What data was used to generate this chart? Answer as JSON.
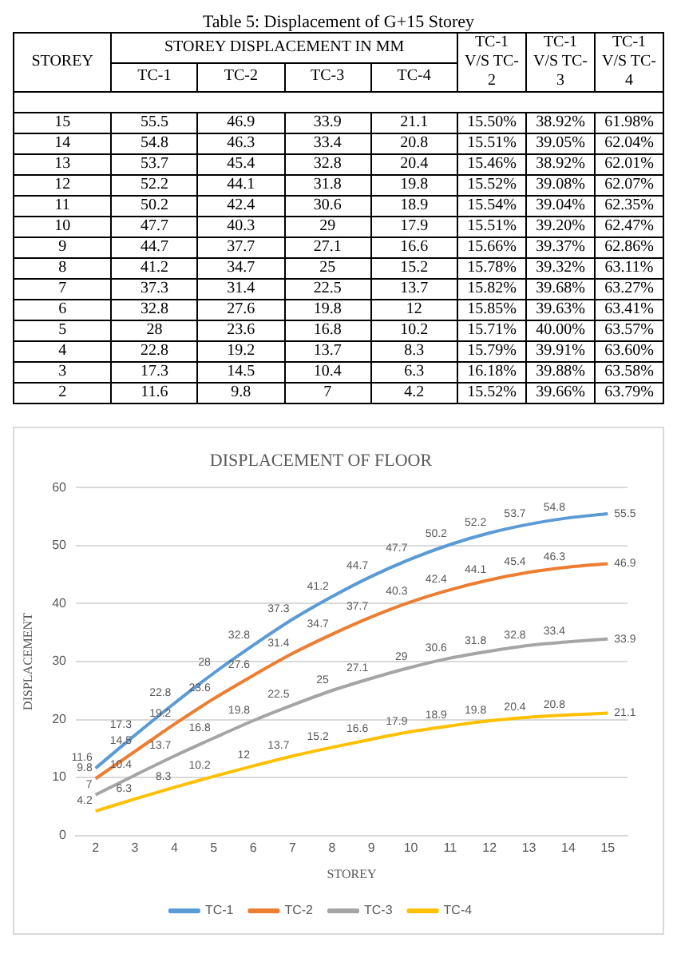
{
  "chart_data": [
    {
      "type": "other",
      "title": "Table 5: Displacement of G+15 Storey",
      "annotations": [
        "STOREY DISPLACEMENT IN MM"
      ],
      "categories": [
        "STOREY",
        "TC-1",
        "TC-2",
        "TC-3",
        "TC-4",
        "TC-1 V/S TC-2",
        "TC-1 V/S TC-3",
        "TC-1 V/S TC-4"
      ],
      "cell_labels": [
        [
          "15",
          "55.5",
          "46.9",
          "33.9",
          "21.1",
          "15.50%",
          "38.92%",
          "61.98%"
        ],
        [
          "14",
          "54.8",
          "46.3",
          "33.4",
          "20.8",
          "15.51%",
          "39.05%",
          "62.04%"
        ],
        [
          "13",
          "53.7",
          "45.4",
          "32.8",
          "20.4",
          "15.46%",
          "38.92%",
          "62.01%"
        ],
        [
          "12",
          "52.2",
          "44.1",
          "31.8",
          "19.8",
          "15.52%",
          "39.08%",
          "62.07%"
        ],
        [
          "11",
          "50.2",
          "42.4",
          "30.6",
          "18.9",
          "15.54%",
          "39.04%",
          "62.35%"
        ],
        [
          "10",
          "47.7",
          "40.3",
          "29",
          "17.9",
          "15.51%",
          "39.20%",
          "62.47%"
        ],
        [
          "9",
          "44.7",
          "37.7",
          "27.1",
          "16.6",
          "15.66%",
          "39.37%",
          "62.86%"
        ],
        [
          "8",
          "41.2",
          "34.7",
          "25",
          "15.2",
          "15.78%",
          "39.32%",
          "63.11%"
        ],
        [
          "7",
          "37.3",
          "31.4",
          "22.5",
          "13.7",
          "15.82%",
          "39.68%",
          "63.27%"
        ],
        [
          "6",
          "32.8",
          "27.6",
          "19.8",
          "12",
          "15.85%",
          "39.63%",
          "63.41%"
        ],
        [
          "5",
          "28",
          "23.6",
          "16.8",
          "10.2",
          "15.71%",
          "40.00%",
          "63.57%"
        ],
        [
          "4",
          "22.8",
          "19.2",
          "13.7",
          "8.3",
          "15.79%",
          "39.91%",
          "63.60%"
        ],
        [
          "3",
          "17.3",
          "14.5",
          "10.4",
          "6.3",
          "16.18%",
          "39.88%",
          "63.58%"
        ],
        [
          "2",
          "11.6",
          "9.8",
          "7",
          "4.2",
          "15.52%",
          "39.66%",
          "63.79%"
        ]
      ]
    },
    {
      "type": "line",
      "title": "DISPLACEMENT OF FLOOR",
      "xlabel": "STOREY",
      "ylabel": "DISPLACEMENT",
      "categories": [
        "2",
        "3",
        "4",
        "5",
        "6",
        "7",
        "8",
        "9",
        "10",
        "11",
        "12",
        "13",
        "14",
        "15"
      ],
      "series": [
        {
          "name": "TC-1",
          "color": "#5b9bd5",
          "values": [
            11.6,
            17.3,
            22.8,
            28,
            32.8,
            37.3,
            41.2,
            44.7,
            47.7,
            50.2,
            52.2,
            53.7,
            54.8,
            55.5
          ]
        },
        {
          "name": "TC-2",
          "color": "#ed7d31",
          "values": [
            9.8,
            14.5,
            19.2,
            23.6,
            27.6,
            31.4,
            34.7,
            37.7,
            40.3,
            42.4,
            44.1,
            45.4,
            46.3,
            46.9
          ]
        },
        {
          "name": "TC-3",
          "color": "#a5a5a5",
          "values": [
            7,
            10.4,
            13.7,
            16.8,
            19.8,
            22.5,
            25,
            27.1,
            29,
            30.6,
            31.8,
            32.8,
            33.4,
            33.9
          ]
        },
        {
          "name": "TC-4",
          "color": "#ffc000",
          "values": [
            4.2,
            6.3,
            8.3,
            10.2,
            12,
            13.7,
            15.2,
            16.6,
            17.9,
            18.9,
            19.8,
            20.4,
            20.8,
            21.1
          ]
        }
      ],
      "ylim": [
        0,
        60
      ],
      "yticks": [
        0,
        10,
        20,
        30,
        40,
        50,
        60
      ],
      "grid": "y",
      "legend": "bottom",
      "marker": "none",
      "line_style": "solid",
      "data_labels": true
    }
  ]
}
